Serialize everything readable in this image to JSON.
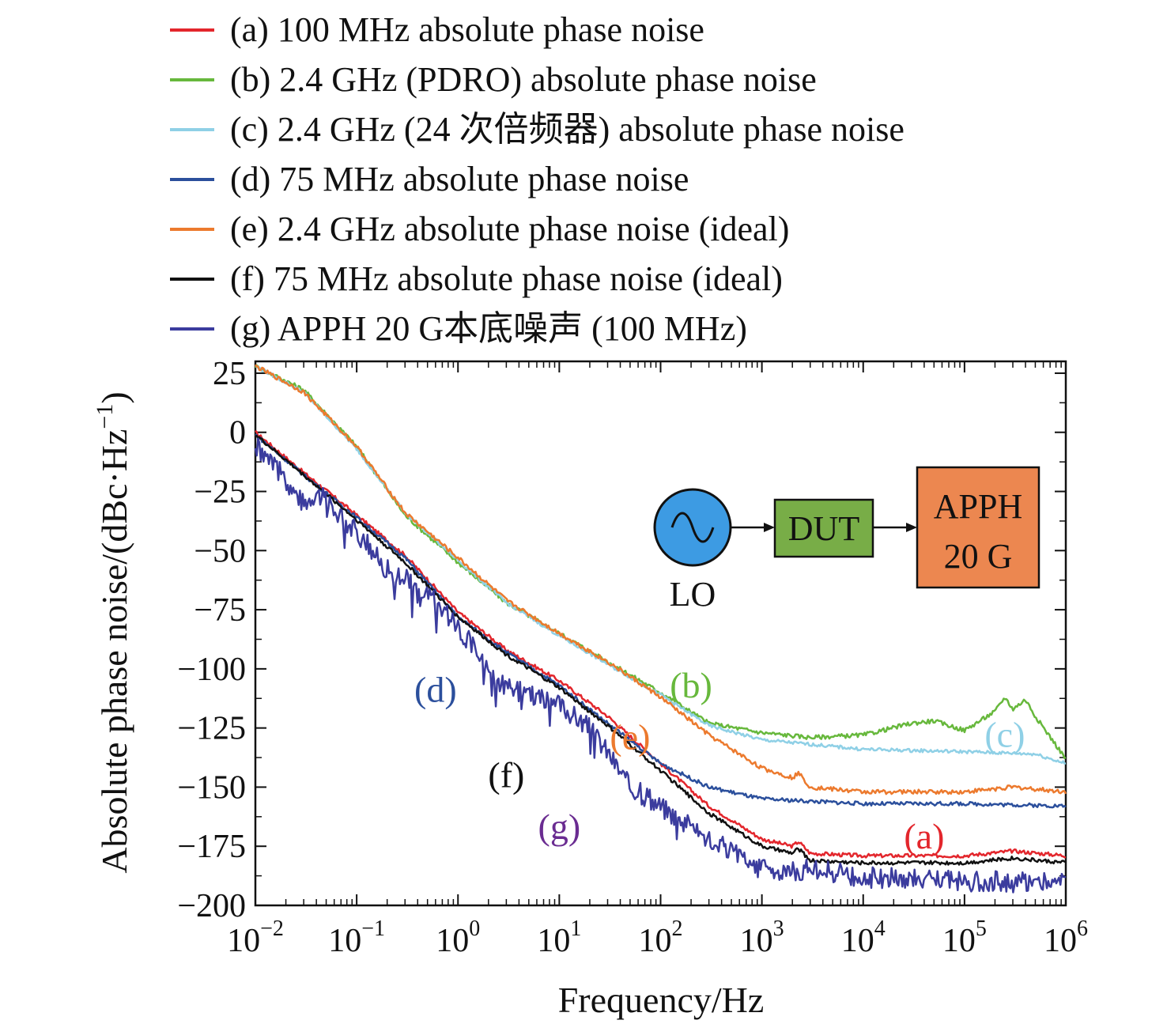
{
  "chart_data": {
    "type": "line",
    "xlabel": "Frequency/Hz",
    "ylabel": "Absolute phase noise/(dBc·Hz",
    "ylabel_exp": "−1",
    "ylabel_close": ")",
    "x_scale": "log",
    "xlim": [
      0.01,
      1000000
    ],
    "ylim": [
      -200,
      30
    ],
    "x_ticks": [
      {
        "value": 0.01,
        "base": "10",
        "exp": "−2"
      },
      {
        "value": 0.1,
        "base": "10",
        "exp": "−1"
      },
      {
        "value": 1,
        "base": "10",
        "exp": "0"
      },
      {
        "value": 10,
        "base": "10",
        "exp": "1"
      },
      {
        "value": 100,
        "base": "10",
        "exp": "2"
      },
      {
        "value": 1000,
        "base": "10",
        "exp": "3"
      },
      {
        "value": 10000,
        "base": "10",
        "exp": "4"
      },
      {
        "value": 100000,
        "base": "10",
        "exp": "5"
      },
      {
        "value": 1000000,
        "base": "10",
        "exp": "6"
      }
    ],
    "y_ticks": [
      {
        "value": 25,
        "label": "25"
      },
      {
        "value": 0,
        "label": "0"
      },
      {
        "value": -25,
        "label": "−25"
      },
      {
        "value": -50,
        "label": "−50"
      },
      {
        "value": -75,
        "label": "−75"
      },
      {
        "value": -100,
        "label": "−100"
      },
      {
        "value": -125,
        "label": "−125"
      },
      {
        "value": -150,
        "label": "−150"
      },
      {
        "value": -175,
        "label": "−175"
      },
      {
        "value": -200,
        "label": "−200"
      }
    ],
    "grid": false,
    "legend_position": "top",
    "series": [
      {
        "id": "a",
        "name": "(a) 100 MHz absolute phase noise",
        "color": "#e3262c",
        "points": [
          [
            0.01,
            0
          ],
          [
            0.03,
            -17
          ],
          [
            0.1,
            -35
          ],
          [
            0.3,
            -52
          ],
          [
            1,
            -76
          ],
          [
            3,
            -92
          ],
          [
            10,
            -105
          ],
          [
            30,
            -120
          ],
          [
            100,
            -140
          ],
          [
            300,
            -158
          ],
          [
            1000,
            -172
          ],
          [
            2000,
            -175
          ],
          [
            2300,
            -173
          ],
          [
            3000,
            -178
          ],
          [
            10000,
            -179
          ],
          [
            100000,
            -179
          ],
          [
            300000,
            -177
          ],
          [
            1000000,
            -179
          ]
        ]
      },
      {
        "id": "b",
        "name": "(b) 2.4 GHz (PDRO) absolute phase noise",
        "color": "#67b83c",
        "points": [
          [
            0.01,
            28
          ],
          [
            0.03,
            18
          ],
          [
            0.1,
            -6
          ],
          [
            0.3,
            -35
          ],
          [
            1,
            -55
          ],
          [
            3,
            -72
          ],
          [
            10,
            -85
          ],
          [
            30,
            -97
          ],
          [
            100,
            -110
          ],
          [
            300,
            -123
          ],
          [
            1000,
            -127
          ],
          [
            3000,
            -129
          ],
          [
            10000,
            -128
          ],
          [
            30000,
            -123
          ],
          [
            50000,
            -122
          ],
          [
            100000,
            -126
          ],
          [
            200000,
            -118
          ],
          [
            250000,
            -112
          ],
          [
            300000,
            -117
          ],
          [
            400000,
            -113
          ],
          [
            500000,
            -120
          ],
          [
            1000000,
            -138
          ]
        ]
      },
      {
        "id": "c",
        "name": "(c) 2.4 GHz (24 次倍频器) absolute phase noise",
        "color": "#8fd0e6",
        "points": [
          [
            0.01,
            28
          ],
          [
            0.03,
            17
          ],
          [
            0.1,
            -7
          ],
          [
            0.3,
            -34
          ],
          [
            1,
            -54
          ],
          [
            3,
            -72
          ],
          [
            10,
            -86
          ],
          [
            30,
            -98
          ],
          [
            100,
            -111
          ],
          [
            300,
            -124
          ],
          [
            1000,
            -130
          ],
          [
            10000,
            -134
          ],
          [
            100000,
            -135
          ],
          [
            500000,
            -136
          ],
          [
            1000000,
            -140
          ]
        ]
      },
      {
        "id": "d",
        "name": "(d) 75 MHz absolute phase noise",
        "color": "#2b4f9c",
        "points": [
          [
            0.01,
            -1
          ],
          [
            0.03,
            -18
          ],
          [
            0.1,
            -36
          ],
          [
            0.3,
            -53
          ],
          [
            1,
            -78
          ],
          [
            3,
            -93
          ],
          [
            10,
            -107
          ],
          [
            30,
            -123
          ],
          [
            100,
            -140
          ],
          [
            300,
            -150
          ],
          [
            1000,
            -155
          ],
          [
            10000,
            -157
          ],
          [
            100000,
            -157
          ],
          [
            1000000,
            -158
          ]
        ]
      },
      {
        "id": "e",
        "name": "(e) 2.4 GHz absolute phase noise (ideal)",
        "color": "#ec7a2e",
        "points": [
          [
            0.01,
            28
          ],
          [
            0.03,
            17
          ],
          [
            0.1,
            -6
          ],
          [
            0.3,
            -34
          ],
          [
            1,
            -53
          ],
          [
            3,
            -71
          ],
          [
            10,
            -85
          ],
          [
            30,
            -97
          ],
          [
            100,
            -112
          ],
          [
            300,
            -128
          ],
          [
            1000,
            -142
          ],
          [
            2000,
            -146
          ],
          [
            2300,
            -144
          ],
          [
            3000,
            -150
          ],
          [
            10000,
            -152
          ],
          [
            100000,
            -152
          ],
          [
            300000,
            -150
          ],
          [
            1000000,
            -152
          ]
        ]
      },
      {
        "id": "f",
        "name": "(f) 75 MHz absolute phase noise (ideal)",
        "color": "#111111",
        "points": [
          [
            0.01,
            -1
          ],
          [
            0.03,
            -18
          ],
          [
            0.1,
            -37
          ],
          [
            0.3,
            -55
          ],
          [
            1,
            -78
          ],
          [
            3,
            -94
          ],
          [
            10,
            -108
          ],
          [
            30,
            -124
          ],
          [
            100,
            -143
          ],
          [
            300,
            -161
          ],
          [
            1000,
            -175
          ],
          [
            2000,
            -178
          ],
          [
            2300,
            -176
          ],
          [
            3000,
            -181
          ],
          [
            10000,
            -182
          ],
          [
            100000,
            -182
          ],
          [
            300000,
            -180
          ],
          [
            1000000,
            -182
          ]
        ]
      },
      {
        "id": "g",
        "name": "(g) APPH 20 G本底噪声 (100 MHz)",
        "color": "#3b3c9e",
        "points": [
          [
            0.01,
            -5
          ],
          [
            0.02,
            -20
          ],
          [
            0.03,
            -30
          ],
          [
            0.04,
            -25
          ],
          [
            0.1,
            -42
          ],
          [
            0.2,
            -58
          ],
          [
            0.3,
            -62
          ],
          [
            0.5,
            -68
          ],
          [
            1,
            -82
          ],
          [
            2,
            -100
          ],
          [
            3,
            -108
          ],
          [
            10,
            -115
          ],
          [
            20,
            -125
          ],
          [
            30,
            -135
          ],
          [
            50,
            -150
          ],
          [
            100,
            -158
          ],
          [
            300,
            -172
          ],
          [
            1000,
            -185
          ],
          [
            2000,
            -186
          ],
          [
            3000,
            -184
          ],
          [
            10000,
            -188
          ],
          [
            100000,
            -190
          ],
          [
            1000000,
            -190
          ]
        ]
      }
    ],
    "annotations": [
      {
        "text": "(a)",
        "series": "a",
        "color": "#e3262c"
      },
      {
        "text": "(b)",
        "series": "b",
        "color": "#67b83c"
      },
      {
        "text": "(c)",
        "series": "c",
        "color": "#8fd0e6"
      },
      {
        "text": "(d)",
        "series": "d",
        "color": "#2b4f9c"
      },
      {
        "text": "(e)",
        "series": "e",
        "color": "#ec7a2e"
      },
      {
        "text": "(f)",
        "series": "f",
        "color": "#111111"
      },
      {
        "text": "(g)",
        "series": "g",
        "color": "#6a2c91"
      }
    ]
  },
  "inset_diagram": {
    "oscillator_label": "LO",
    "dut_label": "DUT",
    "analyzer_line1": "APPH",
    "analyzer_line2": "20 G",
    "colors": {
      "oscillator": "#3d9be3",
      "dut": "#78ad47",
      "analyzer": "#ec8750"
    }
  }
}
